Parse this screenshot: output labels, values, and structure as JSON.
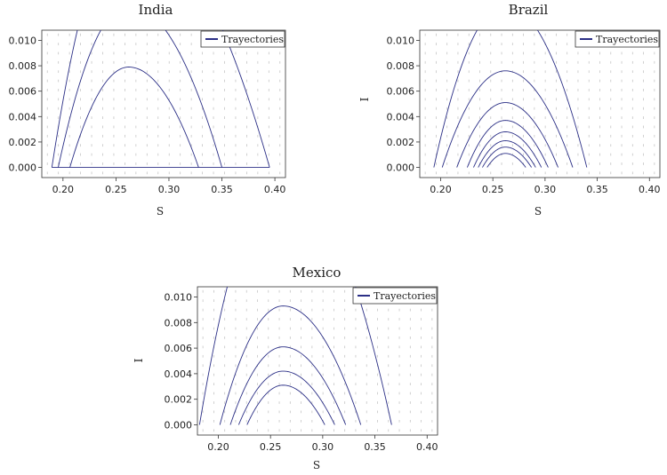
{
  "figure": {
    "accent_color": "#2b2f86",
    "vector_field_color": "#c4c4c4",
    "grid": false
  },
  "chart_data": [
    {
      "type": "line",
      "title": "India",
      "xlabel": "S",
      "ylabel": "",
      "xlim": [
        0.18,
        0.41
      ],
      "ylim": [
        -0.0008,
        0.0108
      ],
      "xticks": [
        "0.20",
        "0.25",
        "0.30",
        "0.35",
        "0.40"
      ],
      "xtick_values": [
        0.2,
        0.25,
        0.3,
        0.35,
        0.4
      ],
      "yticks": [
        "0.000",
        "0.002",
        "0.004",
        "0.006",
        "0.008",
        "0.010"
      ],
      "ytick_values": [
        0,
        0.002,
        0.004,
        0.006,
        0.008,
        0.01
      ],
      "legend": {
        "label": "Trayectories",
        "position": "top-right"
      },
      "series": [
        {
          "s_left": 0.2065,
          "s_right": 0.328,
          "peak_s": 0.262,
          "peak_i": 0.0079
        },
        {
          "s_left": 0.1955,
          "s_right": 0.35,
          "peak_s": 0.262,
          "peak_i": 0.0128
        },
        {
          "s_left": 0.1895,
          "s_right": 0.395,
          "peak_s": 0.262,
          "peak_i": 0.0195
        }
      ],
      "baseline": {
        "from": 0.1895,
        "to": 0.395,
        "i": 0
      }
    },
    {
      "type": "line",
      "title": "Brazil",
      "xlabel": "S",
      "ylabel": "I",
      "xlim": [
        0.18,
        0.41
      ],
      "ylim": [
        -0.0008,
        0.0108
      ],
      "xticks": [
        "0.20",
        "0.25",
        "0.30",
        "0.35",
        "0.40"
      ],
      "xtick_values": [
        0.2,
        0.25,
        0.3,
        0.35,
        0.4
      ],
      "yticks": [
        "0.000",
        "0.002",
        "0.004",
        "0.006",
        "0.008",
        "0.010"
      ],
      "ytick_values": [
        0,
        0.002,
        0.004,
        0.006,
        0.008,
        0.01
      ],
      "legend": {
        "label": "Trayectories",
        "position": "top-right"
      },
      "series": [
        {
          "s_left": 0.2445,
          "s_right": 0.2815,
          "peak_s": 0.262,
          "peak_i": 0.0011
        },
        {
          "s_left": 0.24,
          "s_right": 0.287,
          "peak_s": 0.262,
          "peak_i": 0.0016
        },
        {
          "s_left": 0.236,
          "s_right": 0.291,
          "peak_s": 0.262,
          "peak_i": 0.0021
        },
        {
          "s_left": 0.2315,
          "s_right": 0.2965,
          "peak_s": 0.262,
          "peak_i": 0.0028
        },
        {
          "s_left": 0.2255,
          "s_right": 0.303,
          "peak_s": 0.262,
          "peak_i": 0.0037
        },
        {
          "s_left": 0.2155,
          "s_right": 0.3125,
          "peak_s": 0.262,
          "peak_i": 0.0051
        },
        {
          "s_left": 0.2015,
          "s_right": 0.3265,
          "peak_s": 0.262,
          "peak_i": 0.0076
        },
        {
          "s_left": 0.1935,
          "s_right": 0.34,
          "peak_s": 0.262,
          "peak_i": 0.0128
        }
      ]
    },
    {
      "type": "line",
      "title": "Mexico",
      "xlabel": "S",
      "ylabel": "I",
      "xlim": [
        0.18,
        0.41
      ],
      "ylim": [
        -0.0008,
        0.0108
      ],
      "xticks": [
        "0.20",
        "0.25",
        "0.30",
        "0.35",
        "0.40"
      ],
      "xtick_values": [
        0.2,
        0.25,
        0.3,
        0.35,
        0.4
      ],
      "yticks": [
        "0.000",
        "0.002",
        "0.004",
        "0.006",
        "0.008",
        "0.010"
      ],
      "ytick_values": [
        0,
        0.002,
        0.004,
        0.006,
        0.008,
        0.01
      ],
      "legend": {
        "label": "Trayectories",
        "position": "top-right"
      },
      "series": [
        {
          "s_left": 0.2275,
          "s_right": 0.302,
          "peak_s": 0.262,
          "peak_i": 0.0031
        },
        {
          "s_left": 0.2195,
          "s_right": 0.3115,
          "peak_s": 0.262,
          "peak_i": 0.0042
        },
        {
          "s_left": 0.2115,
          "s_right": 0.322,
          "peak_s": 0.262,
          "peak_i": 0.0061
        },
        {
          "s_left": 0.2015,
          "s_right": 0.3365,
          "peak_s": 0.262,
          "peak_i": 0.0093
        },
        {
          "s_left": 0.182,
          "s_right": 0.366,
          "peak_s": 0.262,
          "peak_i": 0.0195
        }
      ]
    }
  ]
}
